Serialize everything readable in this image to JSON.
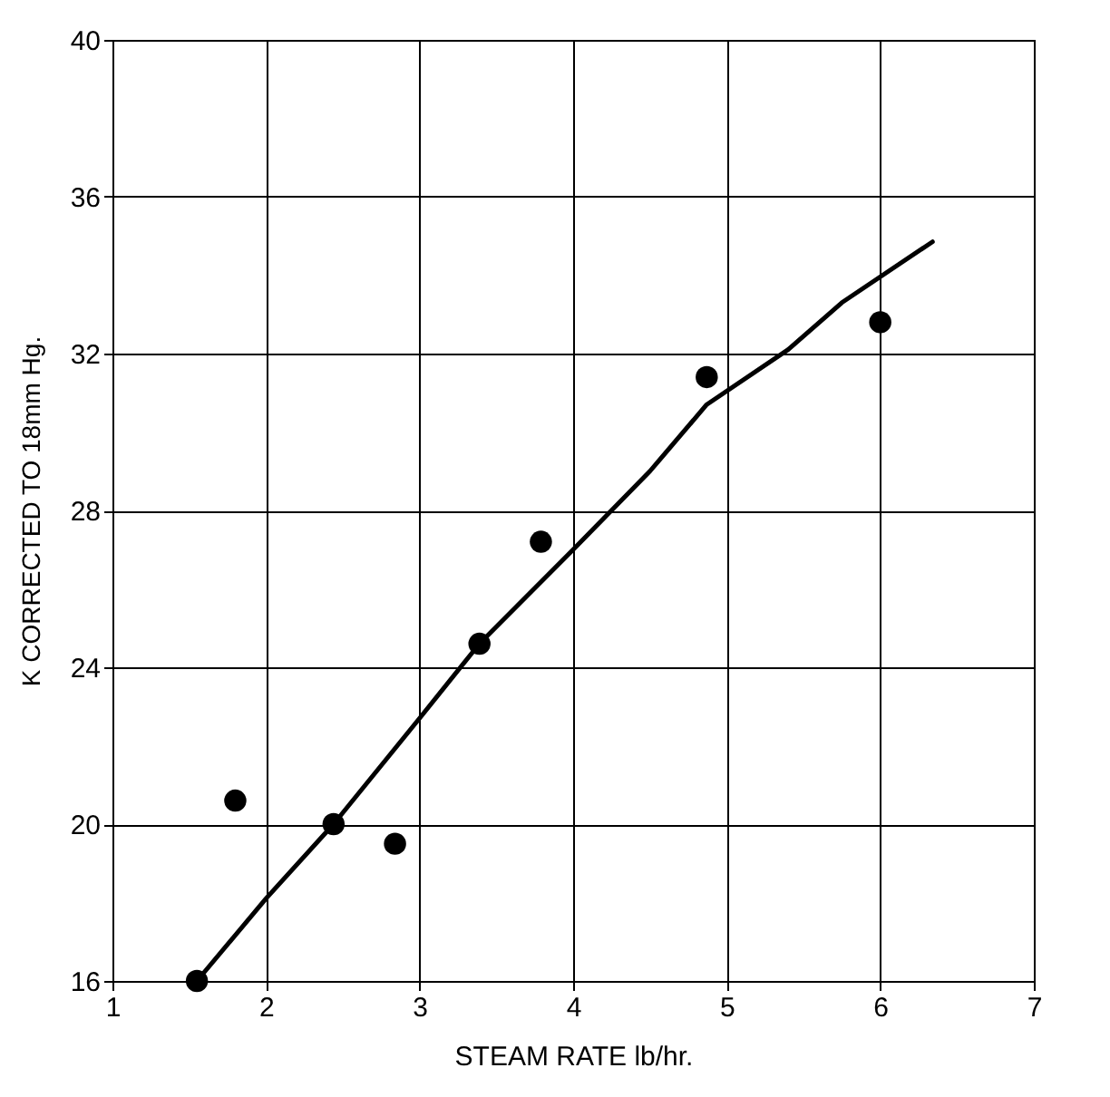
{
  "chart_data": {
    "type": "scatter",
    "xlabel": "STEAM RATE lb/hr.",
    "ylabel": "K CORRECTED TO 18mm Hg.",
    "xlim": [
      1,
      7
    ],
    "ylim": [
      16,
      40
    ],
    "xticks": [
      1,
      2,
      3,
      4,
      5,
      6,
      7
    ],
    "yticks": [
      16,
      20,
      24,
      28,
      32,
      36,
      40
    ],
    "grid": true,
    "series": [
      {
        "color": "#000000",
        "marker": "circle",
        "x": [
          1.55,
          1.8,
          2.44,
          2.84,
          3.39,
          3.79,
          4.87,
          6.0
        ],
        "values": [
          16.0,
          20.6,
          20.0,
          19.5,
          24.6,
          27.2,
          31.4,
          32.8
        ]
      },
      {
        "type": "line",
        "color": "#000000",
        "line_style": "solid",
        "x": [
          1.55,
          2.0,
          2.44,
          3.0,
          3.39,
          4.0,
          4.5,
          4.87,
          5.4,
          5.75,
          6.34
        ],
        "values": [
          16.0,
          18.1,
          20.0,
          22.7,
          24.6,
          27.0,
          29.0,
          30.7,
          32.1,
          33.3,
          34.85
        ]
      }
    ]
  }
}
